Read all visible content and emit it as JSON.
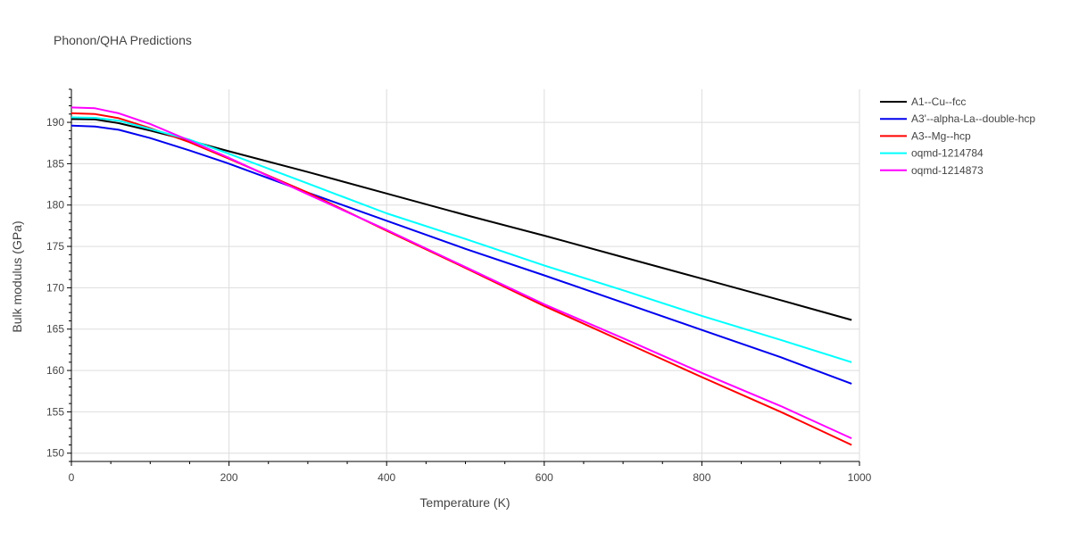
{
  "chart_data": {
    "type": "line",
    "title": "Phonon/QHA Predictions",
    "xlabel": "Temperature (K)",
    "ylabel": "Bulk modulus (GPa)",
    "xlim": [
      0,
      1000
    ],
    "ylim": [
      149,
      194
    ],
    "xticks": [
      0,
      200,
      400,
      600,
      800,
      1000
    ],
    "yticks": [
      150,
      155,
      160,
      165,
      170,
      175,
      180,
      185,
      190
    ],
    "grid": true,
    "legend_position": "top-right",
    "series": [
      {
        "name": "A1--Cu--fcc",
        "color": "#000000",
        "x": [
          0,
          30,
          60,
          100,
          150,
          200,
          300,
          400,
          500,
          600,
          700,
          800,
          900,
          990
        ],
        "y": [
          190.4,
          190.35,
          189.9,
          189.0,
          187.8,
          186.5,
          184.0,
          181.4,
          178.8,
          176.3,
          173.7,
          171.1,
          168.5,
          166.1
        ]
      },
      {
        "name": "A3'--alpha-La--double-hcp",
        "color": "#0000ee",
        "x": [
          0,
          30,
          60,
          100,
          150,
          200,
          300,
          400,
          500,
          600,
          700,
          800,
          900,
          990
        ],
        "y": [
          189.6,
          189.5,
          189.1,
          188.1,
          186.6,
          185.0,
          181.5,
          178.1,
          174.7,
          171.5,
          168.2,
          164.9,
          161.6,
          158.4
        ]
      },
      {
        "name": "A3--Mg--hcp",
        "color": "#ff0000",
        "x": [
          0,
          30,
          60,
          100,
          150,
          200,
          300,
          400,
          500,
          600,
          700,
          800,
          900,
          990
        ],
        "y": [
          191.1,
          191.0,
          190.5,
          189.3,
          187.6,
          185.6,
          181.5,
          176.9,
          172.4,
          167.8,
          163.5,
          159.2,
          155.0,
          151.0
        ]
      },
      {
        "name": "oqmd-1214784",
        "color": "#00ffff",
        "x": [
          0,
          30,
          60,
          100,
          150,
          200,
          300,
          400,
          500,
          600,
          700,
          800,
          900,
          990
        ],
        "y": [
          190.6,
          190.55,
          190.2,
          189.2,
          187.9,
          186.2,
          182.6,
          179.0,
          175.9,
          172.7,
          169.7,
          166.6,
          163.7,
          161.0
        ]
      },
      {
        "name": "oqmd-1214873",
        "color": "#ff00ff",
        "x": [
          0,
          30,
          60,
          100,
          150,
          200,
          300,
          400,
          500,
          600,
          700,
          800,
          900,
          990
        ],
        "y": [
          191.8,
          191.7,
          191.1,
          189.8,
          187.8,
          185.7,
          181.3,
          177.0,
          172.5,
          168.0,
          163.9,
          159.7,
          155.7,
          151.8
        ]
      }
    ]
  }
}
